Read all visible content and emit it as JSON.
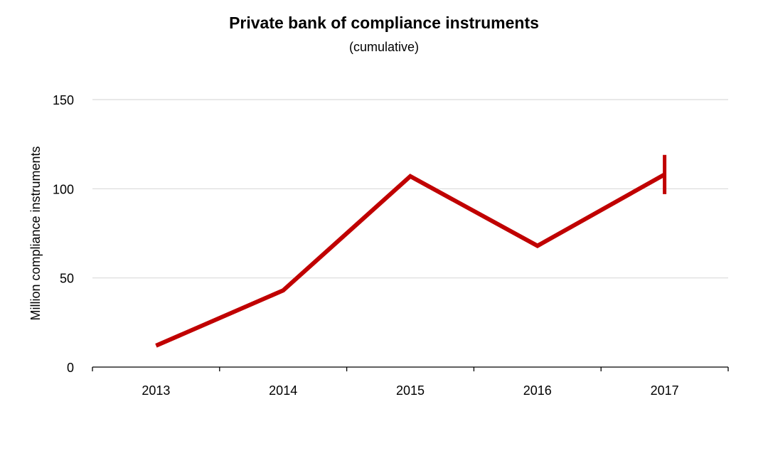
{
  "chart_data": {
    "type": "line",
    "title": "Private bank of compliance instruments",
    "subtitle": "(cumulative)",
    "xlabel": "",
    "ylabel": "Million compliance instruments",
    "categories": [
      "2013",
      "2014",
      "2015",
      "2016",
      "2017"
    ],
    "series": [
      {
        "values": [
          12,
          43,
          107,
          68,
          108
        ],
        "color": "#c00000"
      }
    ],
    "error_bar": {
      "category": "2017",
      "low": 97,
      "high": 119
    },
    "ylim": [
      0,
      150
    ],
    "yticks": [
      0,
      50,
      100,
      150
    ],
    "grid": true,
    "legend": "none"
  }
}
